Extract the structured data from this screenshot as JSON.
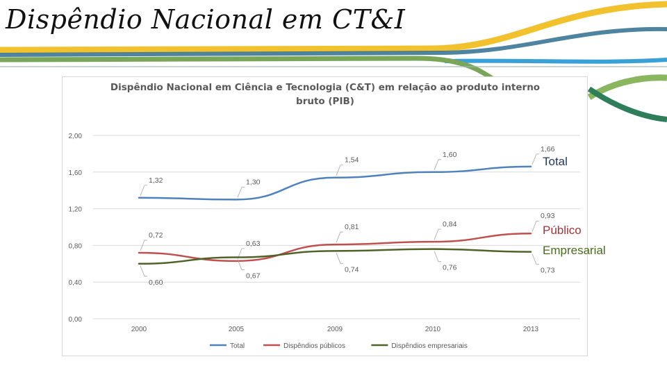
{
  "slide": {
    "title": "Dispêndio Nacional em CT&I",
    "side_labels": {
      "total": "Total",
      "publico": "Público",
      "empresarial": "Empresarial"
    }
  },
  "colors": {
    "total": "#4f81bd",
    "publico": "#c0504d",
    "empresarial": "#4f6228",
    "ribbon_yellow": "#f2c12e",
    "ribbon_blue": "#2f6f8f",
    "ribbon_green": "#7aa65a",
    "ribbon_dark_green": "#2e7d5b",
    "ribbon_sky": "#3aa0d8"
  },
  "chart_data": {
    "type": "line",
    "title_lines": [
      "Dispêndio Nacional em Ciência e Tecnologia (C&T) em relação ao produto interno",
      "bruto (PIB)"
    ],
    "categories": [
      "2000",
      "2005",
      "2009",
      "2010",
      "2013"
    ],
    "ylim": [
      0,
      2
    ],
    "yticks": [
      0,
      0.4,
      0.8,
      1.2,
      1.6,
      2.0
    ],
    "ytick_labels": [
      "0,00",
      "0,40",
      "0,80",
      "1,20",
      "1,60",
      "2,00"
    ],
    "grid": true,
    "legend_position": "bottom",
    "series": [
      {
        "name": "Total",
        "key": "total",
        "values": [
          1.32,
          1.3,
          1.54,
          1.6,
          1.66
        ],
        "labels": [
          "1,32",
          "1,30",
          "1,54",
          "1,60",
          "1,66"
        ],
        "label_side": [
          "above",
          "above",
          "above",
          "above",
          "above"
        ]
      },
      {
        "name": "Dispêndios públicos",
        "key": "publico",
        "values": [
          0.72,
          0.63,
          0.81,
          0.84,
          0.93
        ],
        "labels": [
          "0,72",
          "0,63",
          "0,81",
          "0,84",
          "0,93"
        ],
        "label_side": [
          "above",
          "above",
          "above",
          "above",
          "above"
        ]
      },
      {
        "name": "Dispêndios empresariais",
        "key": "empresarial",
        "values": [
          0.6,
          0.67,
          0.74,
          0.76,
          0.73
        ],
        "labels": [
          "0,60",
          "0,67",
          "0,74",
          "0,76",
          "0,73"
        ],
        "label_side": [
          "below",
          "below",
          "below",
          "below",
          "below"
        ]
      }
    ]
  }
}
